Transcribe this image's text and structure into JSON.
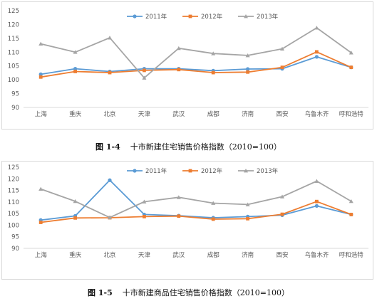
{
  "charts": [
    {
      "caption_num": "图 1-4",
      "caption_text": "十市新建住宅销售价格指数（2010=100）",
      "chart_data": {
        "type": "line",
        "categories": [
          "上海",
          "重庆",
          "北京",
          "天津",
          "武汉",
          "成都",
          "济南",
          "西安",
          "乌鲁木齐",
          "呼和浩特"
        ],
        "ylim": [
          90,
          125
        ],
        "yticks": [
          90,
          95,
          100,
          105,
          110,
          115,
          120,
          125
        ],
        "grid": false,
        "legend_position": "top",
        "series": [
          {
            "name": "2011年",
            "color": "#5b9bd5",
            "marker": "circle",
            "values": [
              102.0,
              104.0,
              103.0,
              104.0,
              104.0,
              103.3,
              103.9,
              104.0,
              108.3,
              104.5
            ]
          },
          {
            "name": "2012年",
            "color": "#ed7d31",
            "marker": "square",
            "values": [
              101.0,
              103.0,
              102.6,
              103.4,
              103.7,
              102.6,
              102.8,
              104.5,
              110.1,
              104.5
            ]
          },
          {
            "name": "2013年",
            "color": "#a5a5a5",
            "marker": "triangle",
            "values": [
              113.0,
              110.0,
              115.2,
              100.7,
              111.4,
              109.5,
              108.8,
              111.2,
              118.8,
              109.8
            ]
          }
        ]
      }
    },
    {
      "caption_num": "图 1-5",
      "caption_text": "十市新建商品住宅销售价格指数（2010=100）",
      "chart_data": {
        "type": "line",
        "categories": [
          "上海",
          "重庆",
          "北京",
          "天津",
          "武汉",
          "成都",
          "济南",
          "西安",
          "乌鲁木齐",
          "呼和浩特"
        ],
        "ylim": [
          90,
          125
        ],
        "yticks": [
          90,
          95,
          100,
          105,
          110,
          115,
          120,
          125
        ],
        "grid": false,
        "legend_position": "top",
        "series": [
          {
            "name": "2011年",
            "color": "#5b9bd5",
            "marker": "circle",
            "values": [
              102.2,
              104.0,
              119.4,
              104.6,
              104.1,
              103.2,
              103.7,
              104.3,
              108.3,
              104.6
            ]
          },
          {
            "name": "2012年",
            "color": "#ed7d31",
            "marker": "square",
            "values": [
              101.2,
              103.1,
              103.2,
              103.7,
              103.9,
              102.6,
              102.8,
              104.7,
              110.2,
              104.6
            ]
          },
          {
            "name": "2013年",
            "color": "#a5a5a5",
            "marker": "triangle",
            "values": [
              115.6,
              110.3,
              103.3,
              110.1,
              112.0,
              109.5,
              108.9,
              112.3,
              119.0,
              110.3
            ]
          }
        ]
      }
    }
  ]
}
